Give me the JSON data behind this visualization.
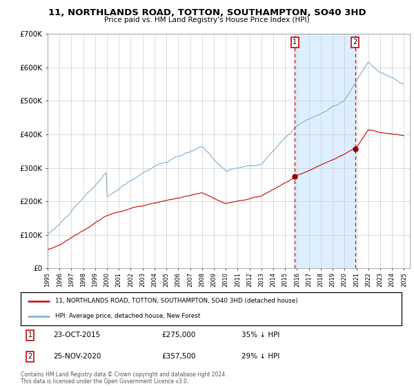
{
  "title": "11, NORTHLANDS ROAD, TOTTON, SOUTHAMPTON, SO40 3HD",
  "subtitle": "Price paid vs. HM Land Registry's House Price Index (HPI)",
  "legend_line1": "11, NORTHLANDS ROAD, TOTTON, SOUTHAMPTON, SO40 3HD (detached house)",
  "legend_line2": "HPI: Average price, detached house, New Forest",
  "hpi_color": "#7bafd4",
  "price_color": "#cc0000",
  "bg_color": "#ffffff",
  "shaded_region_color": "#ddeeff",
  "vline_color": "#cc0000",
  "grid_color": "#cccccc",
  "ylim": [
    0,
    700000
  ],
  "yticks": [
    0,
    100000,
    200000,
    300000,
    400000,
    500000,
    600000,
    700000
  ],
  "ytick_labels": [
    "£0",
    "£100K",
    "£200K",
    "£300K",
    "£400K",
    "£500K",
    "£600K",
    "£700K"
  ],
  "footer": "Contains HM Land Registry data © Crown copyright and database right 2024.\nThis data is licensed under the Open Government Licence v3.0.",
  "sale1_x": 2015.82,
  "sale2_x": 2020.9,
  "annotation1_price": 275000,
  "annotation2_price": 357500
}
